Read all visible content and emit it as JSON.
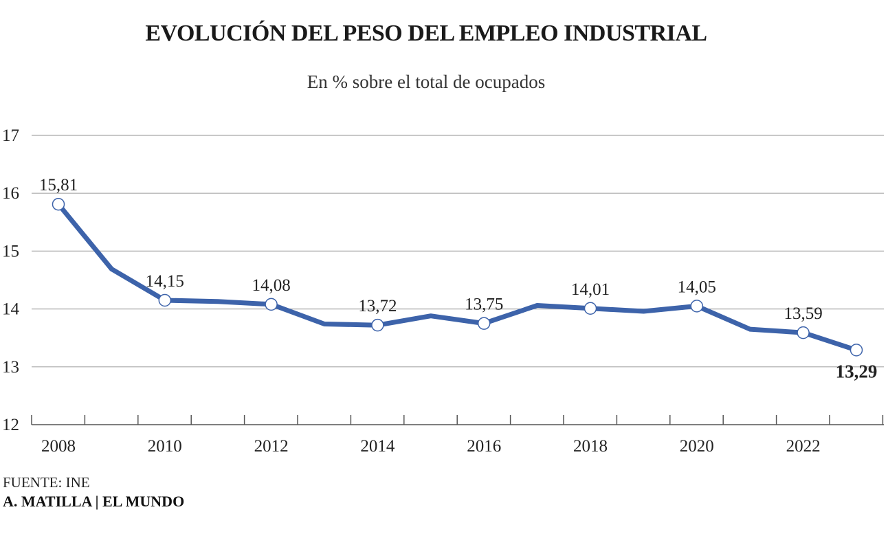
{
  "chart_data": {
    "type": "line",
    "title": "EVOLUCIÓN DEL PESO DEL EMPLEO INDUSTRIAL",
    "subtitle": "En % sobre el total de ocupados",
    "x": [
      2008,
      2009,
      2010,
      2011,
      2012,
      2013,
      2014,
      2015,
      2016,
      2017,
      2018,
      2019,
      2020,
      2021,
      2022,
      2023
    ],
    "x_tick_labels": [
      "2008",
      "2010",
      "2012",
      "2014",
      "2016",
      "2018",
      "2020",
      "2022"
    ],
    "y_tick_labels": [
      "17",
      "16",
      "15",
      "14",
      "13",
      "12"
    ],
    "ylim": [
      12,
      17
    ],
    "series": [
      {
        "values": [
          15.81,
          14.69,
          14.15,
          14.13,
          14.08,
          13.74,
          13.72,
          13.88,
          13.75,
          14.06,
          14.01,
          13.96,
          14.05,
          13.65,
          13.59,
          13.29
        ],
        "color": "#3d63aa"
      }
    ],
    "data_labels": [
      {
        "x": 2008,
        "text": "15,81"
      },
      {
        "x": 2010,
        "text": "14,15"
      },
      {
        "x": 2012,
        "text": "14,08"
      },
      {
        "x": 2014,
        "text": "13,72"
      },
      {
        "x": 2016,
        "text": "13,75"
      },
      {
        "x": 2018,
        "text": "14,01"
      },
      {
        "x": 2020,
        "text": "14,05"
      },
      {
        "x": 2022,
        "text": "13,59"
      },
      {
        "x": 2023,
        "text": "13,29",
        "bold": true
      }
    ],
    "marked_points": [
      2008,
      2010,
      2012,
      2014,
      2016,
      2018,
      2020,
      2022,
      2023
    ],
    "grid": true,
    "line_color": "#3d63aa"
  },
  "source": "FUENTE: INE",
  "credit": "A. MATILLA | EL MUNDO"
}
